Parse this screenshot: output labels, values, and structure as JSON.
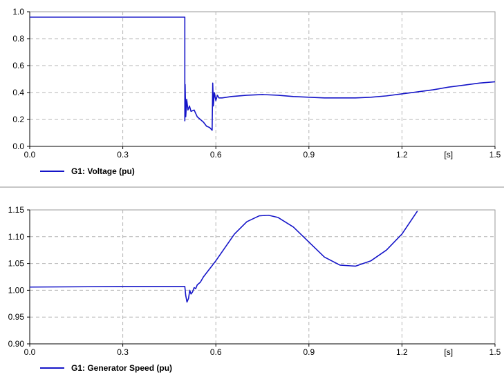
{
  "chart_data": [
    {
      "type": "line",
      "x_unit_label": "[s]",
      "xlim": [
        0,
        1.5
      ],
      "ylim": [
        0,
        1.0
      ],
      "x_ticks": [
        "0.0",
        "0.3",
        "0.6",
        "0.9",
        "1.2",
        "1.5"
      ],
      "y_ticks": [
        "0.0",
        "0.2",
        "0.4",
        "0.6",
        "0.8",
        "1.0"
      ],
      "grid": true,
      "legend_position": "bottom-left",
      "series": [
        {
          "name": "G1: Voltage (pu)",
          "color": "#1414c8",
          "x": [
            0.0,
            0.499,
            0.5,
            0.5,
            0.501,
            0.503,
            0.506,
            0.51,
            0.515,
            0.52,
            0.53,
            0.54,
            0.55,
            0.56,
            0.57,
            0.58,
            0.588,
            0.59,
            0.592,
            0.595,
            0.6,
            0.605,
            0.61,
            0.62,
            0.65,
            0.7,
            0.75,
            0.8,
            0.85,
            0.9,
            0.95,
            1.0,
            1.05,
            1.1,
            1.15,
            1.2,
            1.25,
            1.3,
            1.35,
            1.4,
            1.45,
            1.5
          ],
          "y": [
            0.96,
            0.96,
            0.96,
            0.19,
            0.46,
            0.22,
            0.35,
            0.27,
            0.3,
            0.26,
            0.27,
            0.22,
            0.2,
            0.18,
            0.15,
            0.14,
            0.12,
            0.47,
            0.3,
            0.4,
            0.34,
            0.38,
            0.36,
            0.36,
            0.37,
            0.38,
            0.385,
            0.38,
            0.37,
            0.365,
            0.36,
            0.36,
            0.36,
            0.365,
            0.375,
            0.39,
            0.405,
            0.42,
            0.44,
            0.455,
            0.47,
            0.48
          ]
        }
      ]
    },
    {
      "type": "line",
      "x_unit_label": "[s]",
      "xlim": [
        0,
        1.5
      ],
      "ylim": [
        0.9,
        1.15
      ],
      "x_ticks": [
        "0.0",
        "0.3",
        "0.6",
        "0.9",
        "1.2",
        "1.5"
      ],
      "y_ticks": [
        "0.90",
        "0.95",
        "1.00",
        "1.05",
        "1.10",
        "1.15"
      ],
      "grid": true,
      "legend_position": "bottom-left",
      "series": [
        {
          "name": "G1: Generator Speed (pu)",
          "color": "#1414c8",
          "x": [
            0.0,
            0.3,
            0.5,
            0.503,
            0.507,
            0.512,
            0.516,
            0.52,
            0.525,
            0.53,
            0.535,
            0.54,
            0.55,
            0.56,
            0.58,
            0.6,
            0.63,
            0.66,
            0.7,
            0.74,
            0.77,
            0.8,
            0.85,
            0.9,
            0.95,
            1.0,
            1.05,
            1.1,
            1.15,
            1.2,
            1.25
          ],
          "y": [
            1.006,
            1.007,
            1.007,
            0.99,
            0.978,
            0.985,
            1.0,
            0.993,
            0.997,
            1.005,
            1.003,
            1.01,
            1.015,
            1.025,
            1.04,
            1.055,
            1.08,
            1.105,
            1.128,
            1.139,
            1.14,
            1.136,
            1.118,
            1.09,
            1.062,
            1.047,
            1.045,
            1.055,
            1.075,
            1.105,
            1.148
          ]
        }
      ]
    }
  ]
}
